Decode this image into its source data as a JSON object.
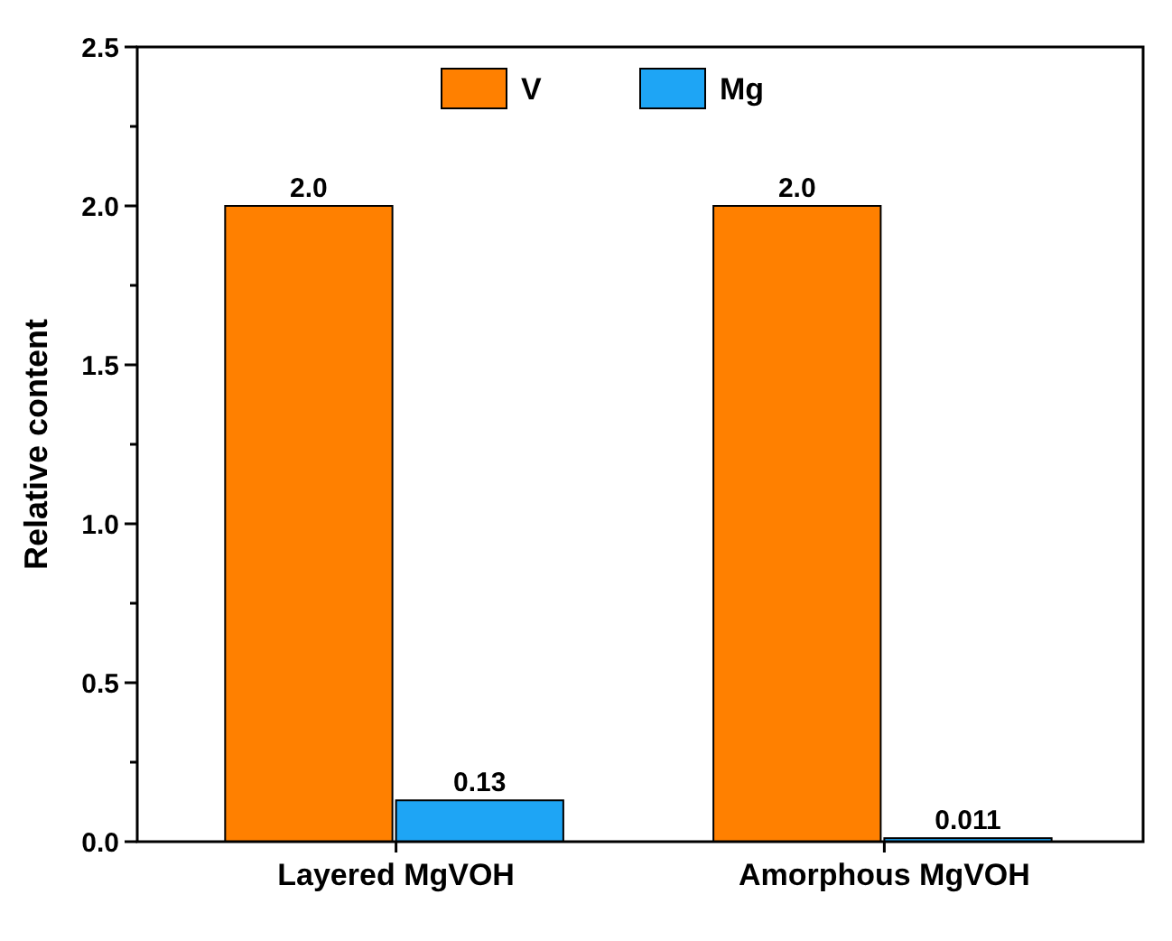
{
  "chart_data": {
    "type": "bar",
    "ylabel": "Relative content",
    "categories": [
      "Layered MgVOH",
      "Amorphous MgVOH"
    ],
    "series": [
      {
        "name": "V",
        "color": "#ff8000",
        "values": [
          2.0,
          2.0
        ],
        "value_labels": [
          "2.0",
          "2.0"
        ]
      },
      {
        "name": "Mg",
        "color": "#1ea5f5",
        "values": [
          0.13,
          0.011
        ],
        "value_labels": [
          "0.13",
          "0.011"
        ]
      }
    ],
    "ylim": [
      0,
      2.5
    ],
    "yticks": [
      {
        "value": 0,
        "label": "0.0"
      },
      {
        "value": 0.25,
        "label": null
      },
      {
        "value": 0.5,
        "label": "0.5"
      },
      {
        "value": 0.75,
        "label": null
      },
      {
        "value": 1,
        "label": "1.0"
      },
      {
        "value": 1.25,
        "label": null
      },
      {
        "value": 1.5,
        "label": "1.5"
      },
      {
        "value": 1.75,
        "label": null
      },
      {
        "value": 2,
        "label": "2.0"
      },
      {
        "value": 2.25,
        "label": null
      },
      {
        "value": 2.5,
        "label": "2.5"
      }
    ],
    "legend": "top",
    "grid": false
  }
}
